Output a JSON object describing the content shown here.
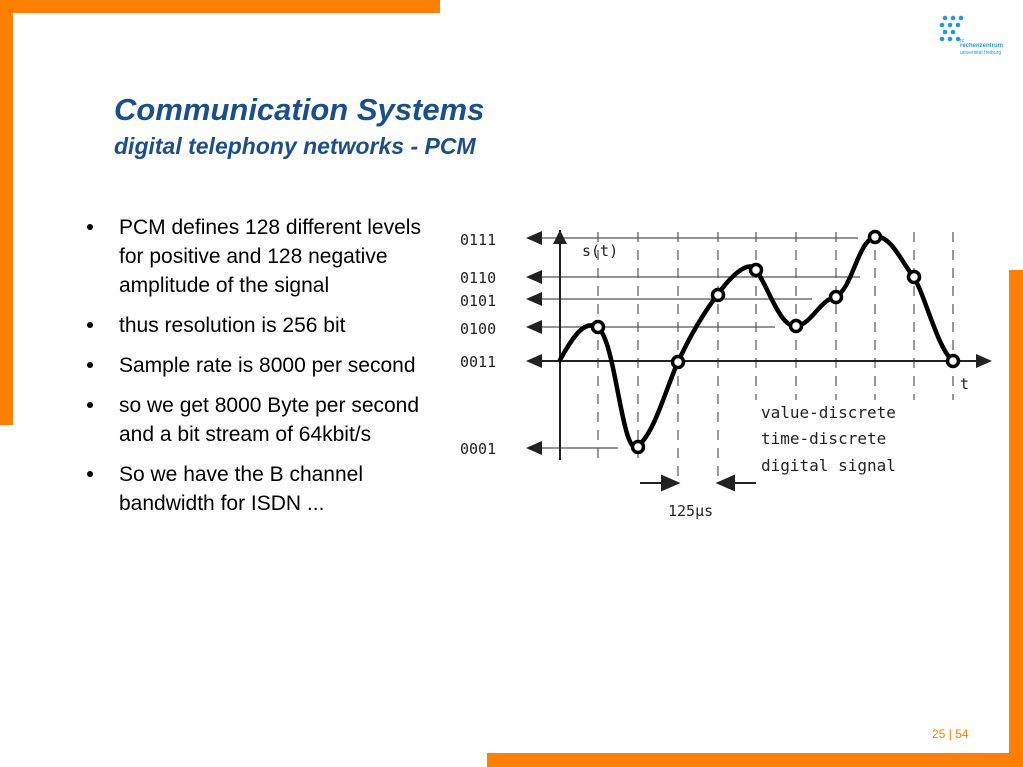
{
  "slide": {
    "title": "Communication Systems",
    "subtitle": "digital telephony networks - PCM",
    "bullets": [
      "PCM defines 128 different levels for positive and 128 negative amplitude of the signal",
      "thus resolution is 256 bit",
      "Sample rate is 8000 per second",
      "so we get 8000 Byte per second and a bit stream of 64kbit/s",
      "So we have the B channel bandwidth for ISDN ..."
    ],
    "page": {
      "current": "25",
      "separator": "|",
      "total": "54"
    }
  },
  "logo": {
    "mark": "rz",
    "line1": "rechenzentrum",
    "line2": "universität freiburg",
    "color": "#1f9ae0"
  },
  "colors": {
    "accent": "#ff7f00",
    "title": "#1a4f8a"
  },
  "diagram": {
    "level_labels": [
      "0111",
      "0110",
      "0101",
      "0100",
      "0011",
      "0001"
    ],
    "y_axis_label": "s(t)",
    "x_axis_label": "t",
    "legend": [
      "value-discrete",
      "time-discrete",
      "digital signal"
    ],
    "interval_label": "125µs"
  }
}
